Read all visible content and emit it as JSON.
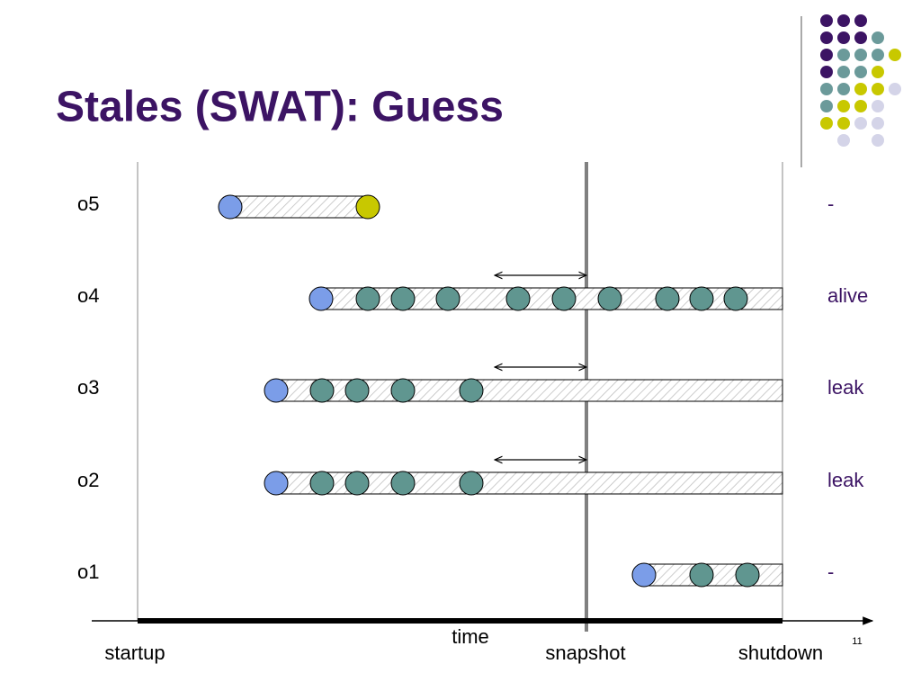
{
  "title": "Stales (SWAT): Guess",
  "rows": [
    {
      "label": "o5",
      "status": "-"
    },
    {
      "label": "o4",
      "status": "alive"
    },
    {
      "label": "o3",
      "status": "leak"
    },
    {
      "label": "o2",
      "status": "leak"
    },
    {
      "label": "o1",
      "status": "-"
    }
  ],
  "axis": {
    "label": "time",
    "ticks": [
      "startup",
      "snapshot",
      "shutdown"
    ]
  },
  "page_number": "11"
}
